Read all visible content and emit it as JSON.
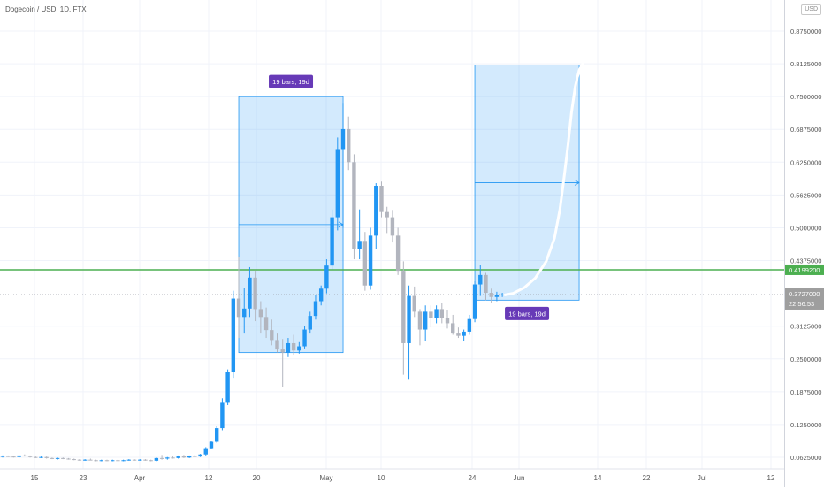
{
  "header": {
    "title": "Dogecoin / USD, 1D, FTX",
    "currency": "USD"
  },
  "chart_data": {
    "type": "candlestick",
    "title": "Dogecoin / USD, 1D, FTX",
    "y_axis": {
      "ticks": [
        "0.8750000",
        "0.8125000",
        "0.7500000",
        "0.6875000",
        "0.6250000",
        "0.5625000",
        "0.5000000",
        "0.4375000",
        "0.3125000",
        "0.2500000",
        "0.1875000",
        "0.1250000",
        "0.0625000"
      ],
      "range": [
        0.04,
        0.93
      ]
    },
    "x_axis": {
      "ticks": [
        "15",
        "23",
        "Apr",
        "12",
        "20",
        "May",
        "10",
        "24",
        "Jun",
        "14",
        "22",
        "Jul",
        "12"
      ]
    },
    "candles": [
      [
        0.064,
        0.066,
        0.062,
        0.065
      ],
      [
        0.065,
        0.066,
        0.063,
        0.064
      ],
      [
        0.064,
        0.065,
        0.062,
        0.063
      ],
      [
        0.063,
        0.066,
        0.062,
        0.066
      ],
      [
        0.066,
        0.068,
        0.064,
        0.065
      ],
      [
        0.065,
        0.066,
        0.062,
        0.063
      ],
      [
        0.063,
        0.064,
        0.061,
        0.062
      ],
      [
        0.062,
        0.064,
        0.061,
        0.063
      ],
      [
        0.063,
        0.064,
        0.06,
        0.061
      ],
      [
        0.061,
        0.062,
        0.059,
        0.06
      ],
      [
        0.06,
        0.062,
        0.058,
        0.061
      ],
      [
        0.061,
        0.062,
        0.059,
        0.06
      ],
      [
        0.06,
        0.061,
        0.058,
        0.059
      ],
      [
        0.059,
        0.06,
        0.057,
        0.058
      ],
      [
        0.058,
        0.059,
        0.056,
        0.057
      ],
      [
        0.057,
        0.059,
        0.056,
        0.058
      ],
      [
        0.058,
        0.06,
        0.057,
        0.057
      ],
      [
        0.057,
        0.058,
        0.055,
        0.056
      ],
      [
        0.056,
        0.058,
        0.055,
        0.057
      ],
      [
        0.057,
        0.058,
        0.055,
        0.056
      ],
      [
        0.056,
        0.058,
        0.055,
        0.057
      ],
      [
        0.057,
        0.058,
        0.056,
        0.056
      ],
      [
        0.056,
        0.058,
        0.055,
        0.057
      ],
      [
        0.057,
        0.059,
        0.056,
        0.058
      ],
      [
        0.058,
        0.059,
        0.056,
        0.057
      ],
      [
        0.057,
        0.059,
        0.056,
        0.058
      ],
      [
        0.058,
        0.059,
        0.056,
        0.057
      ],
      [
        0.057,
        0.058,
        0.055,
        0.056
      ],
      [
        0.056,
        0.062,
        0.055,
        0.061
      ],
      [
        0.061,
        0.067,
        0.058,
        0.06
      ],
      [
        0.06,
        0.063,
        0.058,
        0.062
      ],
      [
        0.062,
        0.064,
        0.06,
        0.061
      ],
      [
        0.061,
        0.066,
        0.06,
        0.065
      ],
      [
        0.065,
        0.067,
        0.061,
        0.062
      ],
      [
        0.062,
        0.066,
        0.061,
        0.065
      ],
      [
        0.065,
        0.067,
        0.063,
        0.064
      ],
      [
        0.064,
        0.069,
        0.063,
        0.068
      ],
      [
        0.068,
        0.082,
        0.066,
        0.08
      ],
      [
        0.08,
        0.094,
        0.078,
        0.092
      ],
      [
        0.092,
        0.122,
        0.09,
        0.118
      ],
      [
        0.118,
        0.175,
        0.114,
        0.168
      ],
      [
        0.168,
        0.23,
        0.162,
        0.226
      ],
      [
        0.226,
        0.38,
        0.214,
        0.365
      ],
      [
        0.365,
        0.445,
        0.29,
        0.33
      ],
      [
        0.33,
        0.385,
        0.3,
        0.346
      ],
      [
        0.346,
        0.425,
        0.33,
        0.405
      ],
      [
        0.405,
        0.418,
        0.322,
        0.345
      ],
      [
        0.345,
        0.36,
        0.3,
        0.33
      ],
      [
        0.33,
        0.348,
        0.29,
        0.305
      ],
      [
        0.305,
        0.325,
        0.276,
        0.286
      ],
      [
        0.286,
        0.3,
        0.262,
        0.268
      ],
      [
        0.268,
        0.288,
        0.196,
        0.262
      ],
      [
        0.262,
        0.29,
        0.255,
        0.28
      ],
      [
        0.28,
        0.296,
        0.258,
        0.266
      ],
      [
        0.266,
        0.282,
        0.26,
        0.274
      ],
      [
        0.274,
        0.312,
        0.27,
        0.306
      ],
      [
        0.306,
        0.34,
        0.3,
        0.332
      ],
      [
        0.332,
        0.372,
        0.325,
        0.36
      ],
      [
        0.36,
        0.39,
        0.352,
        0.384
      ],
      [
        0.384,
        0.44,
        0.375,
        0.428
      ],
      [
        0.428,
        0.535,
        0.42,
        0.52
      ],
      [
        0.52,
        0.672,
        0.495,
        0.65
      ],
      [
        0.65,
        0.738,
        0.5,
        0.688
      ],
      [
        0.688,
        0.712,
        0.61,
        0.625
      ],
      [
        0.625,
        0.64,
        0.44,
        0.46
      ],
      [
        0.46,
        0.535,
        0.44,
        0.475
      ],
      [
        0.475,
        0.492,
        0.38,
        0.39
      ],
      [
        0.39,
        0.5,
        0.382,
        0.485
      ],
      [
        0.485,
        0.585,
        0.46,
        0.58
      ],
      [
        0.58,
        0.588,
        0.52,
        0.53
      ],
      [
        0.53,
        0.54,
        0.49,
        0.52
      ],
      [
        0.52,
        0.534,
        0.472,
        0.485
      ],
      [
        0.485,
        0.5,
        0.41,
        0.418
      ],
      [
        0.418,
        0.436,
        0.22,
        0.28
      ],
      [
        0.28,
        0.39,
        0.212,
        0.37
      ],
      [
        0.37,
        0.388,
        0.33,
        0.34
      ],
      [
        0.34,
        0.345,
        0.276,
        0.306
      ],
      [
        0.306,
        0.352,
        0.284,
        0.34
      ],
      [
        0.34,
        0.352,
        0.31,
        0.328
      ],
      [
        0.328,
        0.352,
        0.318,
        0.345
      ],
      [
        0.345,
        0.356,
        0.318,
        0.328
      ],
      [
        0.328,
        0.344,
        0.308,
        0.318
      ],
      [
        0.318,
        0.334,
        0.296,
        0.3
      ],
      [
        0.3,
        0.31,
        0.29,
        0.294
      ],
      [
        0.294,
        0.306,
        0.284,
        0.302
      ],
      [
        0.302,
        0.334,
        0.296,
        0.326
      ],
      [
        0.326,
        0.398,
        0.32,
        0.392
      ],
      [
        0.392,
        0.43,
        0.37,
        0.41
      ],
      [
        0.41,
        0.414,
        0.362,
        0.376
      ],
      [
        0.376,
        0.384,
        0.356,
        0.368
      ],
      [
        0.368,
        0.378,
        0.36,
        0.372
      ],
      [
        0.372,
        0.376,
        0.368,
        0.3727
      ]
    ],
    "colors": {
      "up": "#2196f3",
      "down": "#b2b5be",
      "support": "#4caf50"
    },
    "support_line": {
      "value": 0.41992,
      "label": "0.4199200"
    },
    "last_price": {
      "value": 0.3727,
      "label": "0.3727000",
      "countdown": "22:56:53"
    },
    "measure_boxes": [
      {
        "label": "19 bars, 19d",
        "start_bar": 43,
        "end_bar": 62,
        "low": 0.262,
        "high": 0.75
      },
      {
        "label": "19 bars, 19d",
        "start_bar": 86,
        "end_bar": 105,
        "low": 0.362,
        "high": 0.81
      }
    ],
    "projection_path": [
      [
        91.5,
        0.372
      ],
      [
        93,
        0.375
      ],
      [
        95,
        0.386
      ],
      [
        97,
        0.404
      ],
      [
        99,
        0.436
      ],
      [
        100.5,
        0.48
      ],
      [
        101.5,
        0.535
      ],
      [
        102.3,
        0.6
      ],
      [
        103,
        0.66
      ],
      [
        103.6,
        0.72
      ],
      [
        104.3,
        0.77
      ],
      [
        105,
        0.8
      ],
      [
        105.6,
        0.812
      ]
    ]
  }
}
